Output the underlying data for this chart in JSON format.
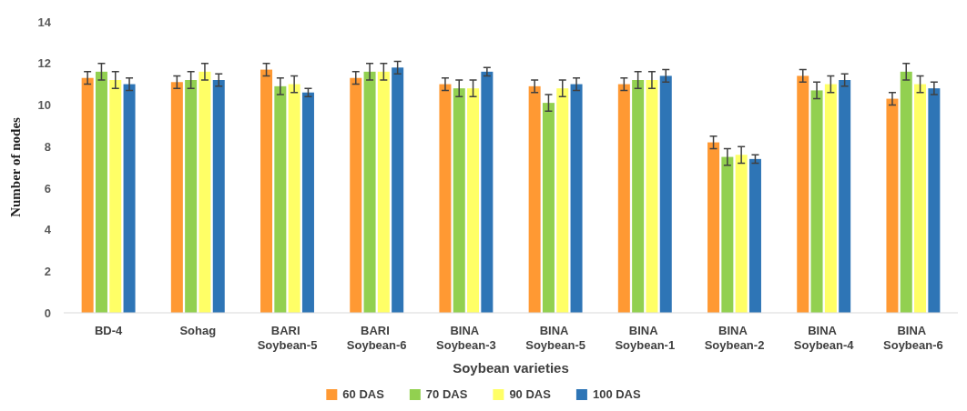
{
  "chart_data": {
    "type": "bar",
    "xlabel": "Soybean varieties",
    "ylabel": "Number of nodes",
    "categories": [
      "BD-4",
      "Sohag",
      "BARI Soybean-5",
      "BARI Soybean-6",
      "BINA Soybean-3",
      "BINA Soybean-5",
      "BINA Soybean-1",
      "BINA Soybean-2",
      "BINA Soybean-4",
      "BINA Soybean-6"
    ],
    "series": [
      {
        "name": "60 DAS",
        "color": "#ff9933",
        "values": [
          11.3,
          11.1,
          11.7,
          11.3,
          11.0,
          10.9,
          11.0,
          8.2,
          11.4,
          10.3
        ],
        "errors": [
          0.3,
          0.3,
          0.3,
          0.3,
          0.3,
          0.3,
          0.3,
          0.3,
          0.3,
          0.3
        ]
      },
      {
        "name": "70 DAS",
        "color": "#92d050",
        "values": [
          11.6,
          11.2,
          10.9,
          11.6,
          10.8,
          10.1,
          11.2,
          7.5,
          10.7,
          11.6
        ],
        "errors": [
          0.4,
          0.4,
          0.4,
          0.4,
          0.4,
          0.4,
          0.4,
          0.4,
          0.4,
          0.4
        ]
      },
      {
        "name": "90 DAS",
        "color": "#ffff66",
        "values": [
          11.2,
          11.6,
          11.0,
          11.6,
          10.8,
          10.8,
          11.2,
          7.6,
          11.0,
          11.0
        ],
        "errors": [
          0.4,
          0.4,
          0.4,
          0.4,
          0.4,
          0.4,
          0.4,
          0.4,
          0.4,
          0.4
        ]
      },
      {
        "name": "100 DAS",
        "color": "#2e75b6",
        "values": [
          11.0,
          11.2,
          10.6,
          11.8,
          11.6,
          11.0,
          11.4,
          7.4,
          11.2,
          10.8
        ],
        "errors": [
          0.3,
          0.3,
          0.2,
          0.3,
          0.2,
          0.3,
          0.3,
          0.2,
          0.3,
          0.3
        ]
      }
    ],
    "ylim": [
      0,
      14
    ],
    "yticks": [
      0,
      2,
      4,
      6,
      8,
      10,
      12,
      14
    ],
    "grid": false,
    "legend": "bottom"
  }
}
